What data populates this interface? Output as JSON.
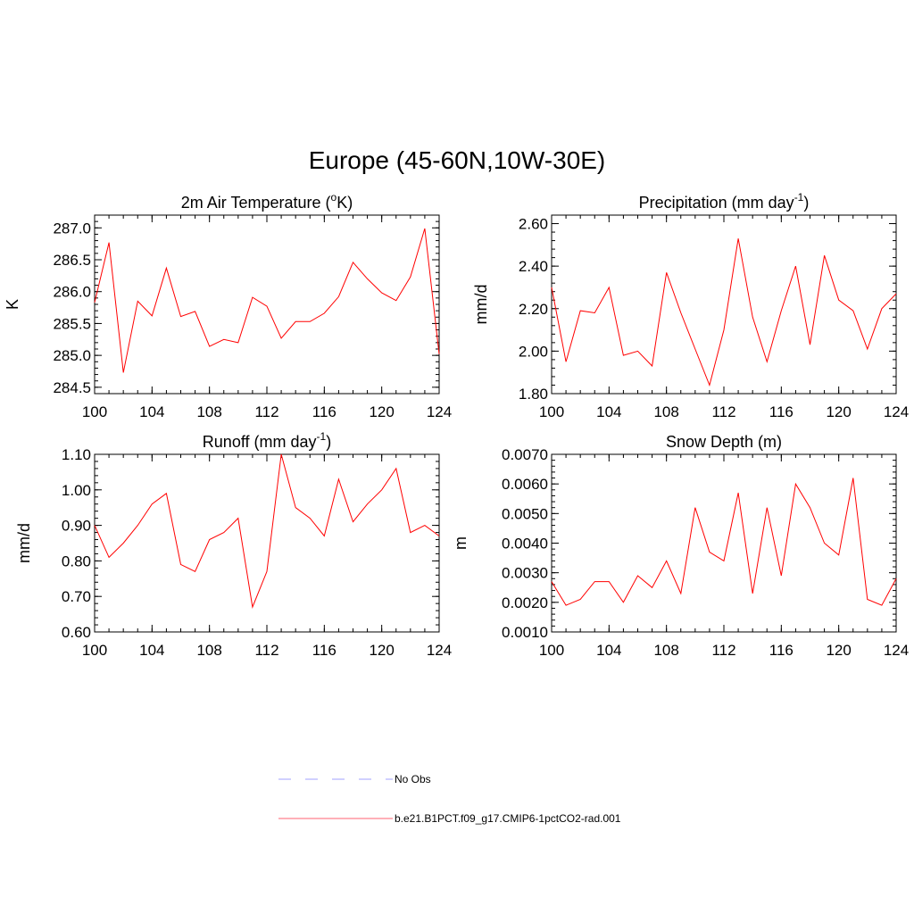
{
  "title": "Europe (45-60N,10W-30E)",
  "chart_data": [
    {
      "type": "line",
      "title": "2m Air Temperature (",
      "title_sup": "o",
      "title_after": "K)",
      "ylabel": "K",
      "xlim": [
        100,
        124
      ],
      "ylim": [
        284.4,
        287.2
      ],
      "x_ticks": [
        "100",
        "104",
        "108",
        "112",
        "116",
        "120",
        "124"
      ],
      "y_ticks": [
        "284.5",
        "285.0",
        "285.5",
        "286.0",
        "286.5",
        "287.0"
      ],
      "series": [
        {
          "name": "b.e21.B1PCT.f09_g17.CMIP6-1pctCO2-rad.001",
          "color": "#ff0000",
          "x": [
            100,
            101,
            102,
            103,
            104,
            105,
            106,
            107,
            108,
            109,
            110,
            111,
            112,
            113,
            114,
            115,
            116,
            117,
            118,
            119,
            120,
            121,
            122,
            123,
            124
          ],
          "values": [
            285.83,
            286.77,
            284.73,
            285.85,
            285.62,
            286.37,
            285.61,
            285.69,
            285.14,
            285.25,
            285.2,
            285.91,
            285.77,
            285.27,
            285.53,
            285.53,
            285.66,
            285.92,
            286.46,
            286.2,
            285.98,
            285.86,
            286.23,
            286.99,
            285.02
          ]
        }
      ]
    },
    {
      "type": "line",
      "title": "Precipitation (mm day",
      "title_sup": "-1",
      "title_after": ")",
      "ylabel": "mm/d",
      "xlim": [
        100,
        124
      ],
      "ylim": [
        1.8,
        2.64
      ],
      "x_ticks": [
        "100",
        "104",
        "108",
        "112",
        "116",
        "120",
        "124"
      ],
      "y_ticks": [
        "1.80",
        "2.00",
        "2.20",
        "2.40",
        "2.60"
      ],
      "series": [
        {
          "name": "b.e21.B1PCT.f09_g17.CMIP6-1pctCO2-rad.001",
          "color": "#ff0000",
          "x": [
            100,
            101,
            102,
            103,
            104,
            105,
            106,
            107,
            108,
            109,
            110,
            111,
            112,
            113,
            114,
            115,
            116,
            117,
            118,
            119,
            120,
            121,
            122,
            123,
            124
          ],
          "values": [
            2.3,
            1.95,
            2.19,
            2.18,
            2.3,
            1.98,
            2.0,
            1.93,
            2.37,
            2.18,
            2.01,
            1.84,
            2.1,
            2.53,
            2.16,
            1.95,
            2.19,
            2.4,
            2.03,
            2.45,
            2.24,
            2.19,
            2.01,
            2.2,
            2.27
          ]
        }
      ]
    },
    {
      "type": "line",
      "title": "Runoff (mm day",
      "title_sup": "-1",
      "title_after": ")",
      "ylabel": "mm/d",
      "xlim": [
        100,
        124
      ],
      "ylim": [
        0.6,
        1.1
      ],
      "x_ticks": [
        "100",
        "104",
        "108",
        "112",
        "116",
        "120",
        "124"
      ],
      "y_ticks": [
        "0.60",
        "0.70",
        "0.80",
        "0.90",
        "1.00",
        "1.10"
      ],
      "series": [
        {
          "name": "b.e21.B1PCT.f09_g17.CMIP6-1pctCO2-rad.001",
          "color": "#ff0000",
          "x": [
            100,
            101,
            102,
            103,
            104,
            105,
            106,
            107,
            108,
            109,
            110,
            111,
            112,
            113,
            114,
            115,
            116,
            117,
            118,
            119,
            120,
            121,
            122,
            123,
            124
          ],
          "values": [
            0.9,
            0.81,
            0.85,
            0.9,
            0.96,
            0.99,
            0.79,
            0.77,
            0.86,
            0.88,
            0.92,
            0.67,
            0.77,
            1.1,
            0.95,
            0.92,
            0.87,
            1.03,
            0.91,
            0.96,
            1.0,
            1.06,
            0.88,
            0.9,
            0.87
          ]
        }
      ]
    },
    {
      "type": "line",
      "title": "Snow Depth (m)",
      "title_sup": "",
      "title_after": "",
      "ylabel": "m",
      "xlim": [
        100,
        124
      ],
      "ylim": [
        0.001,
        0.007
      ],
      "x_ticks": [
        "100",
        "104",
        "108",
        "112",
        "116",
        "120",
        "124"
      ],
      "y_ticks": [
        "0.0010",
        "0.0020",
        "0.0030",
        "0.0040",
        "0.0050",
        "0.0060",
        "0.0070"
      ],
      "series": [
        {
          "name": "b.e21.B1PCT.f09_g17.CMIP6-1pctCO2-rad.001",
          "color": "#ff0000",
          "x": [
            100,
            101,
            102,
            103,
            104,
            105,
            106,
            107,
            108,
            109,
            110,
            111,
            112,
            113,
            114,
            115,
            116,
            117,
            118,
            119,
            120,
            121,
            122,
            123,
            124
          ],
          "values": [
            0.0027,
            0.0019,
            0.0021,
            0.0027,
            0.0027,
            0.002,
            0.0029,
            0.0025,
            0.0034,
            0.0023,
            0.0052,
            0.0037,
            0.0034,
            0.0057,
            0.0023,
            0.0052,
            0.0029,
            0.006,
            0.0052,
            0.004,
            0.0036,
            0.0062,
            0.0021,
            0.0019,
            0.0028
          ]
        }
      ]
    }
  ],
  "legend": {
    "placement": "bottom-center",
    "items": [
      {
        "label": "No Obs",
        "color": "#a0a0ff",
        "style": "dashed"
      },
      {
        "label": "b.e21.B1PCT.f09_g17.CMIP6-1pctCO2-rad.001",
        "color": "#ff6070",
        "style": "solid"
      }
    ]
  }
}
